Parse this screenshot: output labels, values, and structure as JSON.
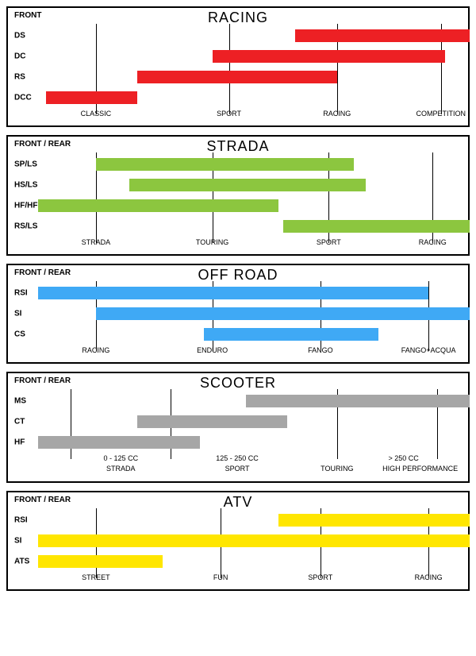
{
  "chart_width_pct": 100,
  "colors": {
    "racing": "#ed2024",
    "strada": "#8cc63f",
    "offroad": "#3fa9f5",
    "scooter": "#a6a6a6",
    "atv": "#ffe600",
    "border": "#000000",
    "background": "#ffffff",
    "text": "#000000"
  },
  "typography": {
    "title_fontsize": 18,
    "corner_fontsize": 10,
    "row_label_fontsize": 10,
    "axis_fontsize": 9
  },
  "panels": [
    {
      "id": "racing",
      "title": "RACING",
      "corner_label": "FRONT",
      "bar_color": "#ed2024",
      "gridlines_pct": [
        12,
        44,
        70,
        95
      ],
      "axis_labels": [
        "CLASSIC",
        "SPORT",
        "RACING",
        "COMPETITION"
      ],
      "rows": [
        {
          "label": "DS",
          "start_pct": 60,
          "end_pct": 102
        },
        {
          "label": "DC",
          "start_pct": 40,
          "end_pct": 96
        },
        {
          "label": "RS",
          "start_pct": 22,
          "end_pct": 70
        },
        {
          "label": "DCC",
          "start_pct": 0,
          "end_pct": 22
        }
      ]
    },
    {
      "id": "strada",
      "title": "STRADA",
      "corner_label": "FRONT / REAR",
      "bar_color": "#8cc63f",
      "gridlines_pct": [
        12,
        40,
        68,
        93
      ],
      "axis_labels": [
        "STRADA",
        "TOURING",
        "SPORT",
        "RACING"
      ],
      "rows": [
        {
          "label": "SP/LS",
          "start_pct": 12,
          "end_pct": 74
        },
        {
          "label": "HS/LS",
          "start_pct": 20,
          "end_pct": 77
        },
        {
          "label": "HF/HF",
          "start_pct": -2,
          "end_pct": 56
        },
        {
          "label": "RS/LS",
          "start_pct": 57,
          "end_pct": 102
        }
      ]
    },
    {
      "id": "offroad",
      "title": "OFF ROAD",
      "corner_label": "FRONT / REAR",
      "bar_color": "#3fa9f5",
      "gridlines_pct": [
        12,
        40,
        66,
        92
      ],
      "axis_labels": [
        "RACING",
        "ENDURO",
        "FANGO",
        "FANGO+ACQUA"
      ],
      "rows": [
        {
          "label": "RSI",
          "start_pct": -2,
          "end_pct": 92
        },
        {
          "label": "SI",
          "start_pct": 12,
          "end_pct": 102
        },
        {
          "label": "CS",
          "start_pct": 38,
          "end_pct": 80
        }
      ]
    },
    {
      "id": "scooter",
      "title": "SCOOTER",
      "corner_label": "FRONT / REAR",
      "bar_color": "#a6a6a6",
      "gridlines_pct": [
        6,
        30,
        70,
        94
      ],
      "axis_labels_top": [
        "0 - 125 CC",
        "125 - 250 CC",
        "",
        "> 250 CC"
      ],
      "axis_labels_bottom": [
        "STRADA",
        "SPORT",
        "TOURING",
        "HIGH PERFORMANCE"
      ],
      "axis_label_top_positions_pct": [
        18,
        46,
        70,
        86
      ],
      "axis_label_bottom_positions_pct": [
        18,
        46,
        70,
        90
      ],
      "rows": [
        {
          "label": "MS",
          "start_pct": 48,
          "end_pct": 102
        },
        {
          "label": "CT",
          "start_pct": 22,
          "end_pct": 58
        },
        {
          "label": "HF",
          "start_pct": -2,
          "end_pct": 37
        }
      ]
    },
    {
      "id": "atv",
      "title": "ATV",
      "corner_label": "FRONT / REAR",
      "bar_color": "#ffe600",
      "gridlines_pct": [
        12,
        42,
        66,
        92
      ],
      "axis_labels": [
        "STREET",
        "FUN",
        "SPORT",
        "RACING"
      ],
      "rows": [
        {
          "label": "RSI",
          "start_pct": 56,
          "end_pct": 102
        },
        {
          "label": "SI",
          "start_pct": -2,
          "end_pct": 102
        },
        {
          "label": "ATS",
          "start_pct": -2,
          "end_pct": 28
        }
      ]
    }
  ]
}
